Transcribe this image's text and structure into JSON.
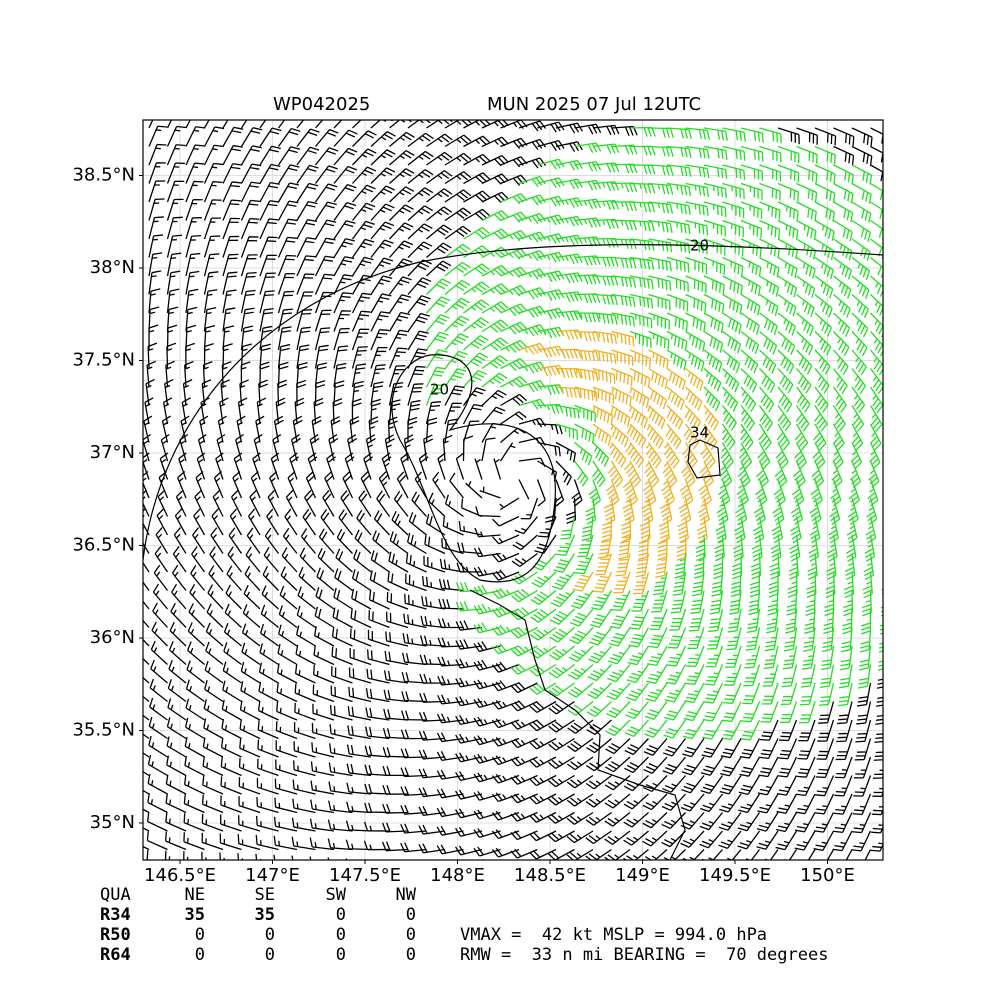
{
  "chart_data": {
    "type": "wind-barb-map",
    "title_left": "WP042025",
    "title_right": "MUN 2025 07 Jul 12UTC",
    "xlim": [
      146.3,
      150.3
    ],
    "ylim": [
      34.8,
      38.8
    ],
    "xticks": [
      {
        "value": 146.5,
        "label": "146.5°E"
      },
      {
        "value": 147,
        "label": "147°E"
      },
      {
        "value": 147.5,
        "label": "147.5°E"
      },
      {
        "value": 148,
        "label": "148°E"
      },
      {
        "value": 148.5,
        "label": "148.5°E"
      },
      {
        "value": 149,
        "label": "149°E"
      },
      {
        "value": 149.5,
        "label": "149.5°E"
      },
      {
        "value": 150,
        "label": "150°E"
      }
    ],
    "yticks": [
      {
        "value": 35,
        "label": "35°N"
      },
      {
        "value": 35.5,
        "label": "35.5°N"
      },
      {
        "value": 36,
        "label": "36°N"
      },
      {
        "value": 36.5,
        "label": "36.5°N"
      },
      {
        "value": 37,
        "label": "37°N"
      },
      {
        "value": 37.5,
        "label": "37.5°N"
      },
      {
        "value": 38,
        "label": "38°N"
      },
      {
        "value": 38.5,
        "label": "38.5°N"
      }
    ],
    "grid": true,
    "contour_labels": [
      20,
      20,
      34
    ]
  },
  "table": {
    "header": [
      "QUA",
      "NE",
      "SE",
      "SW",
      "NW"
    ],
    "rows": [
      [
        "R34",
        "35",
        "35",
        "0",
        "0"
      ],
      [
        "R50",
        "0",
        "0",
        "0",
        "0"
      ],
      [
        "R64",
        "0",
        "0",
        "0",
        "0"
      ]
    ]
  },
  "info": [
    "VMAX =  42 kt MSLP = 994.0 hPa",
    "RMW =  33 n mi BEARING =  70 degrees"
  ]
}
